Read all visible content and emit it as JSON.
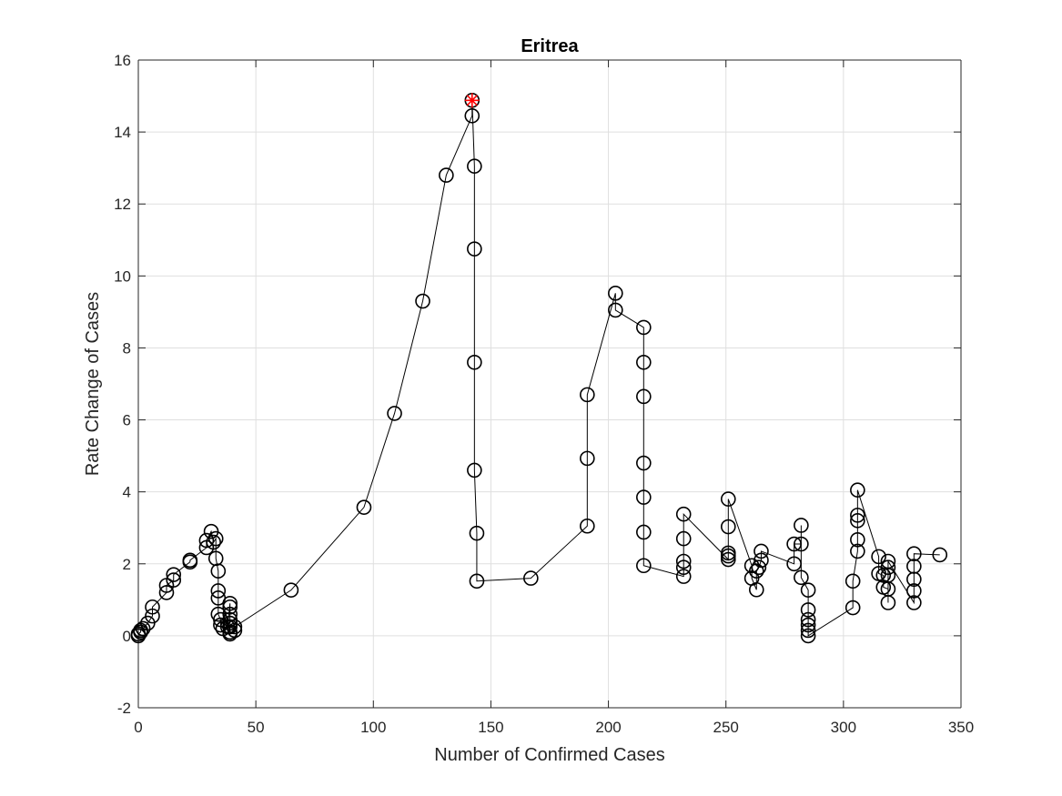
{
  "chart_data": {
    "type": "line",
    "title": "Eritrea",
    "xlabel": "Number of Confirmed Cases",
    "ylabel": "Rate Change of Cases",
    "xlim": [
      0,
      350
    ],
    "ylim": [
      -2,
      16
    ],
    "xticks": [
      0,
      50,
      100,
      150,
      200,
      250,
      300,
      350
    ],
    "yticks": [
      -2,
      0,
      2,
      4,
      6,
      8,
      10,
      12,
      14,
      16
    ],
    "grid": true,
    "legend": "none",
    "line_color": "#000000",
    "highlight_color": "#ff0000",
    "series": [
      {
        "marker": "circle",
        "points": [
          [
            0,
            0
          ],
          [
            0,
            0.05
          ],
          [
            1,
            0.1
          ],
          [
            1,
            0.15
          ],
          [
            2,
            0.2
          ],
          [
            4,
            0.35
          ],
          [
            6,
            0.55
          ],
          [
            6,
            0.8
          ],
          [
            12,
            1.2
          ],
          [
            12,
            1.4
          ],
          [
            15,
            1.55
          ],
          [
            15,
            1.7
          ],
          [
            22,
            2.05
          ],
          [
            22,
            2.1
          ],
          [
            29,
            2.45
          ],
          [
            29,
            2.65
          ],
          [
            31,
            2.9
          ],
          [
            32,
            2.6
          ],
          [
            33,
            2.7
          ],
          [
            33,
            2.15
          ],
          [
            34,
            1.8
          ],
          [
            34,
            1.25
          ],
          [
            34,
            1.05
          ],
          [
            34,
            0.6
          ],
          [
            35,
            0.45
          ],
          [
            35,
            0.3
          ],
          [
            36,
            0.2
          ],
          [
            38,
            0.25
          ],
          [
            39,
            0.9
          ],
          [
            39,
            0.8
          ],
          [
            39,
            0.6
          ],
          [
            39,
            0.45
          ],
          [
            39,
            0.35
          ],
          [
            39,
            0.25
          ],
          [
            39,
            0.1
          ],
          [
            39,
            0.05
          ],
          [
            41,
            0.15
          ],
          [
            41,
            0.25
          ],
          [
            65,
            1.27
          ],
          [
            96,
            3.57
          ],
          [
            109,
            6.18
          ],
          [
            121,
            9.3
          ],
          [
            131,
            12.8
          ],
          [
            142,
            14.45
          ],
          [
            142,
            14.88
          ],
          [
            143,
            13.05
          ],
          [
            143,
            10.75
          ],
          [
            143,
            7.6
          ],
          [
            143,
            4.6
          ],
          [
            144,
            2.85
          ],
          [
            144,
            1.52
          ],
          [
            167,
            1.6
          ],
          [
            191,
            3.05
          ],
          [
            191,
            4.93
          ],
          [
            191,
            6.7
          ],
          [
            203,
            9.52
          ],
          [
            203,
            9.05
          ],
          [
            215,
            8.57
          ],
          [
            215,
            7.6
          ],
          [
            215,
            6.65
          ],
          [
            215,
            4.8
          ],
          [
            215,
            3.85
          ],
          [
            215,
            2.88
          ],
          [
            215,
            1.95
          ],
          [
            232,
            1.65
          ],
          [
            232,
            1.9
          ],
          [
            232,
            2.07
          ],
          [
            232,
            2.7
          ],
          [
            232,
            3.38
          ],
          [
            251,
            2.12
          ],
          [
            251,
            2.22
          ],
          [
            251,
            2.3
          ],
          [
            251,
            3.03
          ],
          [
            251,
            3.8
          ],
          [
            261,
            1.95
          ],
          [
            261,
            1.6
          ],
          [
            263,
            1.28
          ],
          [
            263,
            1.8
          ],
          [
            264,
            1.9
          ],
          [
            265,
            2.1
          ],
          [
            265,
            2.35
          ],
          [
            279,
            2.0
          ],
          [
            279,
            2.55
          ],
          [
            282,
            2.55
          ],
          [
            282,
            3.07
          ],
          [
            282,
            1.62
          ],
          [
            285,
            1.27
          ],
          [
            285,
            0.72
          ],
          [
            285,
            0.45
          ],
          [
            285,
            0.3
          ],
          [
            285,
            0.15
          ],
          [
            285,
            0.0
          ],
          [
            304,
            0.78
          ],
          [
            304,
            1.52
          ],
          [
            306,
            2.35
          ],
          [
            306,
            2.67
          ],
          [
            306,
            3.2
          ],
          [
            306,
            3.35
          ],
          [
            306,
            4.05
          ],
          [
            315,
            2.2
          ],
          [
            315,
            1.73
          ],
          [
            317,
            1.68
          ],
          [
            317,
            1.35
          ],
          [
            319,
            1.3
          ],
          [
            319,
            0.92
          ],
          [
            319,
            1.68
          ],
          [
            319,
            1.9
          ],
          [
            319,
            2.07
          ],
          [
            330,
            0.92
          ],
          [
            330,
            1.25
          ],
          [
            330,
            1.57
          ],
          [
            330,
            1.93
          ],
          [
            330,
            2.28
          ],
          [
            341,
            2.25
          ]
        ]
      }
    ],
    "highlight_point": [
      142,
      14.88
    ]
  }
}
